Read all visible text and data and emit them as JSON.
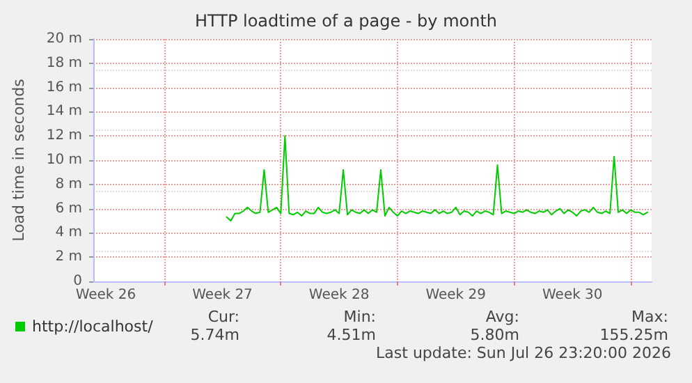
{
  "chart_data": {
    "type": "line",
    "title": "HTTP loadtime of a page - by month",
    "ylabel": "Load time in seconds",
    "categories": [
      null,
      null,
      null,
      "Week 26",
      null,
      null,
      null,
      null,
      null,
      null,
      null,
      null,
      null,
      null,
      null,
      null,
      null,
      null,
      null,
      null,
      null,
      null,
      null,
      null,
      null,
      null,
      null,
      null,
      null,
      null,
      null,
      "Week 27",
      null,
      null,
      null,
      null,
      null,
      null,
      null,
      null,
      null,
      null,
      null,
      null,
      null,
      null,
      null,
      null,
      null,
      null,
      null,
      null,
      null,
      null,
      null,
      null,
      null,
      null,
      null,
      "Week 28",
      null,
      null,
      null,
      null,
      null,
      null,
      null,
      null,
      null,
      null,
      null,
      null,
      null,
      null,
      null,
      null,
      null,
      null,
      null,
      null,
      null,
      null,
      null,
      null,
      null,
      null,
      null,
      "Week 29",
      null,
      null,
      null,
      null,
      null,
      null,
      null,
      null,
      null,
      null,
      null,
      null,
      null,
      null,
      null,
      null,
      null,
      null,
      null,
      null,
      null,
      null,
      null,
      null,
      null,
      null,
      null,
      "Week 30",
      null,
      null,
      null,
      null,
      null,
      null,
      null,
      null,
      null,
      null,
      null,
      null,
      null,
      null,
      null,
      null,
      null,
      null,
      null
    ],
    "ylim": [
      0,
      20
    ],
    "yticks": [
      0,
      {
        "value": 2,
        "label": "2 m"
      },
      {
        "value": 4,
        "label": "4 m"
      },
      {
        "value": 6,
        "label": "6 m"
      },
      {
        "value": 8,
        "label": "8 m"
      },
      {
        "value": 10,
        "label": "10 m"
      },
      {
        "value": 12,
        "label": "12 m"
      },
      {
        "value": 14,
        "label": "14 m"
      },
      {
        "value": 16,
        "label": "16 m"
      },
      {
        "value": 18,
        "label": "18 m"
      },
      {
        "value": 20,
        "label": "20 m"
      }
    ],
    "grid": true,
    "legend": "bottom left",
    "marker": "none",
    "line_style": "solid",
    "series": [
      {
        "name": "http://localhost/",
        "color": "#00cc00",
        "values": [
          null,
          null,
          null,
          null,
          null,
          null,
          null,
          null,
          null,
          null,
          null,
          null,
          null,
          null,
          null,
          null,
          null,
          null,
          null,
          null,
          null,
          null,
          null,
          null,
          null,
          null,
          null,
          null,
          null,
          null,
          null,
          null,
          5.3,
          5.0,
          5.6,
          5.6,
          5.8,
          6.1,
          5.8,
          5.6,
          5.7,
          9.2,
          5.7,
          5.9,
          6.1,
          5.6,
          12.0,
          5.6,
          5.5,
          5.7,
          5.4,
          5.8,
          5.6,
          5.6,
          6.1,
          5.7,
          5.6,
          5.7,
          5.9,
          5.6,
          9.2,
          5.5,
          5.9,
          5.7,
          5.6,
          5.9,
          5.6,
          5.9,
          5.7,
          9.2,
          5.4,
          6.1,
          5.7,
          5.4,
          5.8,
          5.6,
          5.8,
          5.7,
          5.6,
          5.8,
          5.7,
          5.6,
          5.9,
          5.6,
          5.8,
          5.6,
          5.7,
          6.1,
          5.5,
          5.8,
          5.7,
          5.4,
          5.8,
          5.6,
          5.8,
          5.7,
          5.5,
          9.6,
          5.6,
          5.8,
          5.7,
          5.6,
          5.8,
          5.7,
          5.9,
          5.7,
          5.6,
          5.8,
          5.7,
          5.9,
          5.5,
          5.8,
          6.0,
          5.6,
          5.9,
          5.7,
          5.4,
          5.8,
          5.9,
          5.7,
          6.1,
          5.7,
          5.6,
          5.8,
          5.6,
          10.3,
          5.7,
          5.9,
          5.6,
          5.9,
          5.7,
          5.7,
          5.5,
          5.7,
          null
        ]
      }
    ],
    "annotations": [
      "Cur:",
      "Min:",
      "Avg:",
      "Max:",
      "5.74m",
      "4.51m",
      "5.80m",
      "155.25m",
      "Last update: Sun Jul 26 23:20:00 2026"
    ]
  }
}
